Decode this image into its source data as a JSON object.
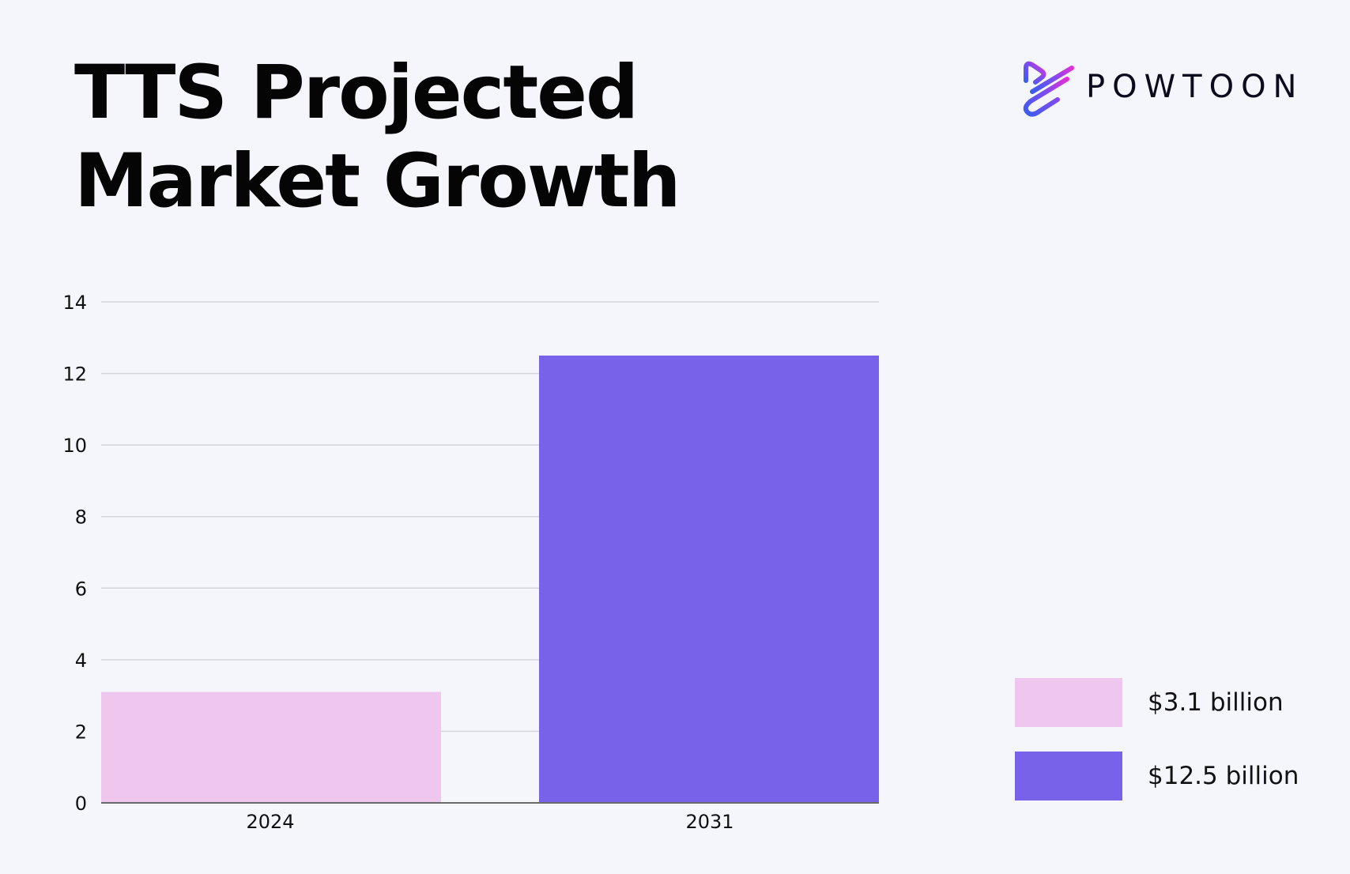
{
  "title_lines": [
    "TTS Projected",
    "Market Growth"
  ],
  "brand": {
    "name": "POWTOON",
    "icon": "powtoon-logo-icon"
  },
  "colors": {
    "background": "#f5f5fc",
    "bar_2024": "#efc6ee",
    "bar_2031": "#7862ea",
    "gridline": "#d4d4dc",
    "baseline": "#6a6a6a"
  },
  "chart_data": {
    "type": "bar",
    "title": "TTS Projected Market Growth",
    "categories": [
      "2024",
      "2031"
    ],
    "values": [
      3.1,
      12.5
    ],
    "ylim": [
      0,
      14
    ],
    "yticks": [
      0,
      2,
      4,
      6,
      8,
      10,
      12,
      14
    ],
    "xlabel": "",
    "ylabel": "",
    "grid": true,
    "legend_placement": "bottom-right",
    "legend": [
      {
        "label": "$3.1 billion",
        "color": "#efc6ee"
      },
      {
        "label": "$12.5 billion",
        "color": "#7862ea"
      }
    ]
  }
}
